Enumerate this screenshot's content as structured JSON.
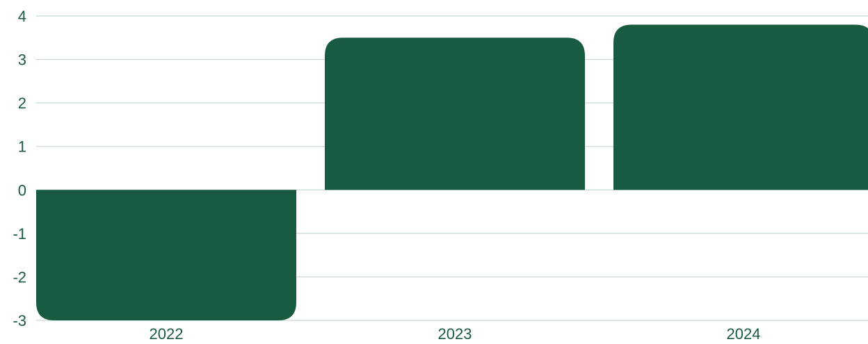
{
  "chart_data": {
    "type": "bar",
    "categories": [
      "2022",
      "2023",
      "2024"
    ],
    "values": [
      -3,
      3.5,
      3.8
    ],
    "ylim": [
      -3,
      4
    ],
    "yticks": [
      4,
      3,
      2,
      1,
      0,
      -1,
      -2,
      -3
    ],
    "ytick_labels": [
      "4",
      "3",
      "2",
      "1",
      "0",
      "-1",
      "-2",
      "-3"
    ],
    "title": "",
    "xlabel": "",
    "ylabel": "",
    "grid": true,
    "legend": "none",
    "colors": {
      "bar": "#195b40",
      "grid": "#c9d9d2",
      "text": "#1a5a40"
    }
  }
}
